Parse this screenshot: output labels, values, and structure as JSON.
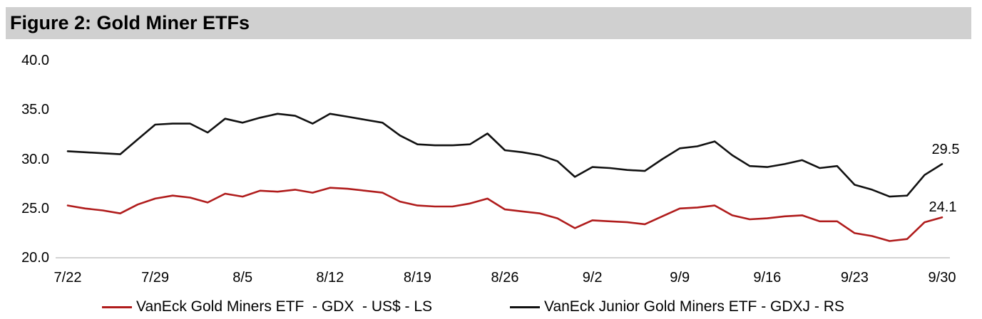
{
  "figure": {
    "title": "Figure 2: Gold Miner ETFs"
  },
  "colors": {
    "gdx_red": "#b01c1c",
    "gdxj_black": "#111111",
    "title_bar_bg": "#d0d0d0",
    "baseline_gray": "#d3d3d3"
  },
  "chart_data": {
    "type": "line",
    "title": "Figure 2: Gold Miner ETFs",
    "xlabel": "",
    "ylabel": "",
    "ylim": [
      20.0,
      40.0
    ],
    "grid": false,
    "legend_position": "bottom",
    "y_ticks": [
      {
        "label": "40.0",
        "value": 40.0
      },
      {
        "label": "35.0",
        "value": 35.0
      },
      {
        "label": "30.0",
        "value": 30.0
      },
      {
        "label": "25.0",
        "value": 25.0
      },
      {
        "label": "20.0",
        "value": 20.0
      }
    ],
    "categories": [
      "7/22",
      "7/23",
      "7/24",
      "7/25",
      "7/26",
      "7/29",
      "7/30",
      "7/31",
      "8/1",
      "8/2",
      "8/5",
      "8/6",
      "8/7",
      "8/8",
      "8/9",
      "8/12",
      "8/13",
      "8/14",
      "8/15",
      "8/16",
      "8/19",
      "8/20",
      "8/21",
      "8/22",
      "8/23",
      "8/26",
      "8/27",
      "8/28",
      "8/29",
      "8/30",
      "9/2",
      "9/3",
      "9/4",
      "9/5",
      "9/6",
      "9/9",
      "9/10",
      "9/11",
      "9/12",
      "9/13",
      "9/16",
      "9/17",
      "9/18",
      "9/19",
      "9/20",
      "9/23",
      "9/24",
      "9/25",
      "9/26",
      "9/27",
      "9/30"
    ],
    "x_tick_indices": [
      0,
      5,
      10,
      15,
      20,
      25,
      30,
      35,
      40,
      45,
      50
    ],
    "x_tick_labels": [
      "7/22",
      "7/29",
      "8/5",
      "8/12",
      "8/19",
      "8/26",
      "9/2",
      "9/9",
      "9/16",
      "9/23",
      "9/30"
    ],
    "series": [
      {
        "name": "VanEck Gold Miners ETF  - GDX  - US$ - LS",
        "axis": "left",
        "color": "#b01c1c",
        "end_label": "24.1",
        "values": [
          25.3,
          25.0,
          24.8,
          24.5,
          25.4,
          26.0,
          26.3,
          26.1,
          25.6,
          26.5,
          26.2,
          26.8,
          26.7,
          26.9,
          26.6,
          27.1,
          27.0,
          26.8,
          26.6,
          25.7,
          25.3,
          25.2,
          25.2,
          25.5,
          26.0,
          24.9,
          24.7,
          24.5,
          24.0,
          23.0,
          23.8,
          23.7,
          23.6,
          23.4,
          24.2,
          25.0,
          25.1,
          25.3,
          24.3,
          23.9,
          24.0,
          24.2,
          24.3,
          23.7,
          23.7,
          22.5,
          22.2,
          21.7,
          21.9,
          23.6,
          24.1
        ]
      },
      {
        "name": "VanEck Junior Gold Miners ETF - GDXJ - RS",
        "axis": "right",
        "color": "#111111",
        "end_label": "29.5",
        "values": [
          30.8,
          30.7,
          30.6,
          30.5,
          32.0,
          33.5,
          33.6,
          33.6,
          32.7,
          34.1,
          33.7,
          34.2,
          34.6,
          34.4,
          33.6,
          34.6,
          34.3,
          34.0,
          33.7,
          32.4,
          31.5,
          31.4,
          31.4,
          31.5,
          32.6,
          30.9,
          30.7,
          30.4,
          29.8,
          28.2,
          29.2,
          29.1,
          28.9,
          28.8,
          30.0,
          31.1,
          31.3,
          31.8,
          30.4,
          29.3,
          29.2,
          29.5,
          29.9,
          29.1,
          29.3,
          27.4,
          26.9,
          26.2,
          26.3,
          28.4,
          29.5
        ]
      }
    ]
  }
}
